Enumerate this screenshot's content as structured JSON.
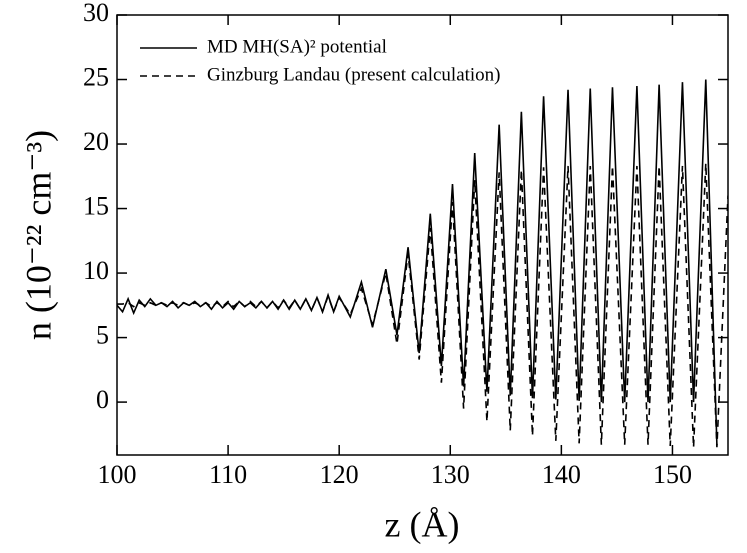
{
  "chart_data": {
    "type": "line",
    "xlabel": "z (Å)",
    "ylabel": "n (10⁻²² cm⁻³)",
    "xlim": [
      100,
      155
    ],
    "ylim": [
      -4.1,
      30
    ],
    "xticks": [
      100,
      110,
      120,
      130,
      140,
      150
    ],
    "yticks": [
      0,
      5,
      10,
      15,
      20,
      25,
      30
    ],
    "legend": "upper left",
    "x": [
      100,
      100.5,
      101,
      101.5,
      102,
      102.5,
      103,
      103.5,
      104,
      104.5,
      105,
      105.5,
      106,
      106.5,
      107,
      107.5,
      108,
      108.5,
      109,
      109.5,
      110,
      110.5,
      111,
      111.5,
      112,
      112.5,
      113,
      113.5,
      114,
      114.5,
      115,
      115.5,
      116,
      116.5,
      117,
      117.5,
      118,
      118.5,
      119,
      119.5,
      120,
      121,
      122,
      123,
      124.2,
      125.2,
      126.2,
      127.2,
      128.2,
      129.2,
      130.2,
      131.2,
      132.2,
      133.3,
      134.4,
      135.4,
      136.4,
      137.4,
      138.4,
      139.5,
      140.6,
      141.6,
      142.6,
      143.6,
      144.6,
      145.7,
      146.8,
      147.8,
      148.8,
      149.8,
      150.9,
      151.9,
      153.0,
      154.0,
      155.0
    ],
    "series": [
      {
        "name": "MD MH(SA)² potential",
        "color": "#000000",
        "dash": "solid",
        "values": [
          7.5,
          7.0,
          8.0,
          6.9,
          7.9,
          7.4,
          8.0,
          7.5,
          7.7,
          7.4,
          7.8,
          7.3,
          7.7,
          7.5,
          7.8,
          7.4,
          7.7,
          7.2,
          7.8,
          7.3,
          7.7,
          7.2,
          7.8,
          7.4,
          7.7,
          7.3,
          7.8,
          7.3,
          7.8,
          7.2,
          7.9,
          7.2,
          7.9,
          7.2,
          8.0,
          7.1,
          8.1,
          7.0,
          8.3,
          7.0,
          8.2,
          6.6,
          9.3,
          5.8,
          10.3,
          5.2,
          12.0,
          3.8,
          14.6,
          2.8,
          16.9,
          1.2,
          19.3,
          0.8,
          21.5,
          0.5,
          22.5,
          0.3,
          23.7,
          0.2,
          24.2,
          0.1,
          24.3,
          0,
          24.4,
          0,
          24.5,
          0,
          24.6,
          0,
          24.8,
          0,
          25.0,
          -3.3,
          null
        ]
      },
      {
        "name": "Ginzburg Landau (present calculation)",
        "color": "#000000",
        "dash": "dashed",
        "values": [
          7.6,
          7.6,
          7.7,
          7.4,
          7.7,
          7.5,
          7.7,
          7.5,
          7.7,
          7.5,
          7.7,
          7.5,
          7.7,
          7.5,
          7.7,
          7.5,
          7.7,
          7.4,
          7.7,
          7.4,
          7.8,
          7.4,
          7.8,
          7.4,
          7.8,
          7.4,
          7.8,
          7.3,
          7.8,
          7.3,
          7.9,
          7.3,
          7.9,
          7.2,
          8.0,
          7.1,
          8.1,
          7.0,
          8.2,
          7.0,
          8.1,
          6.8,
          8.8,
          6.0,
          10.0,
          4.5,
          11.5,
          3.3,
          13.5,
          1.5,
          15.5,
          -0.5,
          17.2,
          -1.5,
          17.8,
          -2.2,
          18.0,
          -2.6,
          18.2,
          -3.0,
          18.3,
          -3.2,
          18.3,
          -3.3,
          18.3,
          -3.3,
          18.3,
          -3.3,
          18.3,
          -3.4,
          18.3,
          -3.5,
          18.5,
          -3.5,
          16.0
        ]
      }
    ]
  }
}
